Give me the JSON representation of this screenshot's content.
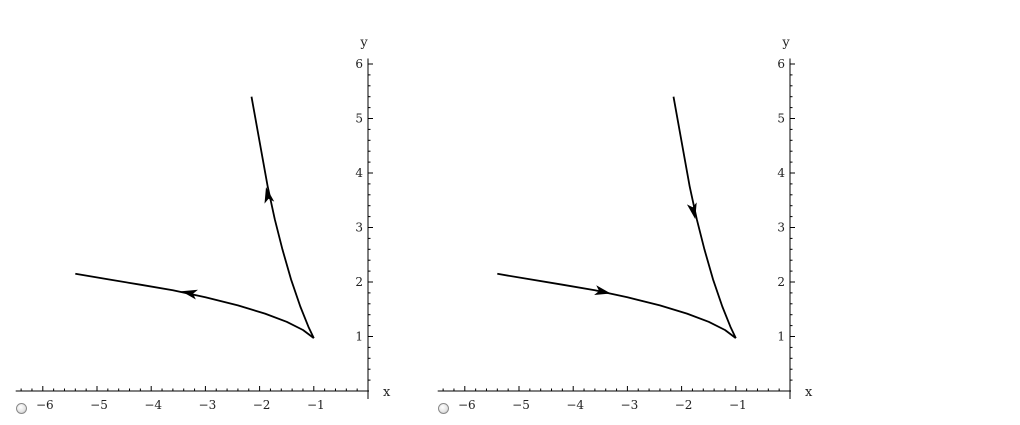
{
  "chart_data": [
    {
      "type": "line",
      "xlabel": "x",
      "ylabel": "y",
      "xlim": [
        -6.5,
        0
      ],
      "ylim": [
        -0.2,
        6.1
      ],
      "xticks": [
        -6,
        -5,
        -4,
        -3,
        -2,
        -1
      ],
      "yticks": [
        1,
        2,
        3,
        4,
        5,
        6
      ],
      "tick_labels_x": [
        "−6",
        "−5",
        "−4",
        "−3",
        "−2",
        "−1"
      ],
      "tick_labels_y": [
        "1",
        "2",
        "3",
        "4",
        "5",
        "6"
      ],
      "series": [
        {
          "x": [
            -2.15,
            -2.05,
            -1.95,
            -1.85,
            -1.72,
            -1.58,
            -1.42,
            -1.25,
            -1.1,
            -1.0
          ],
          "y": [
            5.4,
            4.85,
            4.3,
            3.75,
            3.15,
            2.6,
            2.05,
            1.55,
            1.18,
            0.97
          ],
          "arrow_at": [
            -1.85,
            3.6
          ],
          "arrow_direction": "toward_start"
        },
        {
          "x": [
            -5.4,
            -4.8,
            -4.2,
            -3.6,
            -3.0,
            -2.4,
            -1.9,
            -1.5,
            -1.2,
            -1.0
          ],
          "y": [
            2.15,
            2.05,
            1.95,
            1.85,
            1.72,
            1.57,
            1.42,
            1.27,
            1.12,
            0.97
          ],
          "arrow_at": [
            -3.3,
            1.8
          ],
          "arrow_direction": "toward_start"
        }
      ]
    },
    {
      "type": "line",
      "xlabel": "x",
      "ylabel": "y",
      "xlim": [
        -6.5,
        0
      ],
      "ylim": [
        -0.2,
        6.1
      ],
      "xticks": [
        -6,
        -5,
        -4,
        -3,
        -2,
        -1
      ],
      "yticks": [
        1,
        2,
        3,
        4,
        5,
        6
      ],
      "tick_labels_x": [
        "−6",
        "−5",
        "−4",
        "−3",
        "−2",
        "−1"
      ],
      "tick_labels_y": [
        "1",
        "2",
        "3",
        "4",
        "5",
        "6"
      ],
      "series": [
        {
          "x": [
            -2.15,
            -2.05,
            -1.95,
            -1.85,
            -1.72,
            -1.58,
            -1.42,
            -1.25,
            -1.1,
            -1.0
          ],
          "y": [
            5.4,
            4.85,
            4.3,
            3.75,
            3.15,
            2.6,
            2.05,
            1.55,
            1.18,
            0.97
          ],
          "arrow_at": [
            -1.78,
            3.3
          ],
          "arrow_direction": "toward_end"
        },
        {
          "x": [
            -5.4,
            -4.8,
            -4.2,
            -3.6,
            -3.0,
            -2.4,
            -1.9,
            -1.5,
            -1.2,
            -1.0
          ],
          "y": [
            2.15,
            2.05,
            1.95,
            1.85,
            1.72,
            1.57,
            1.42,
            1.27,
            1.12,
            0.97
          ],
          "arrow_at": [
            -3.45,
            1.82
          ],
          "arrow_direction": "toward_end"
        }
      ]
    }
  ],
  "options": [
    {
      "selected": false
    },
    {
      "selected": false
    }
  ]
}
